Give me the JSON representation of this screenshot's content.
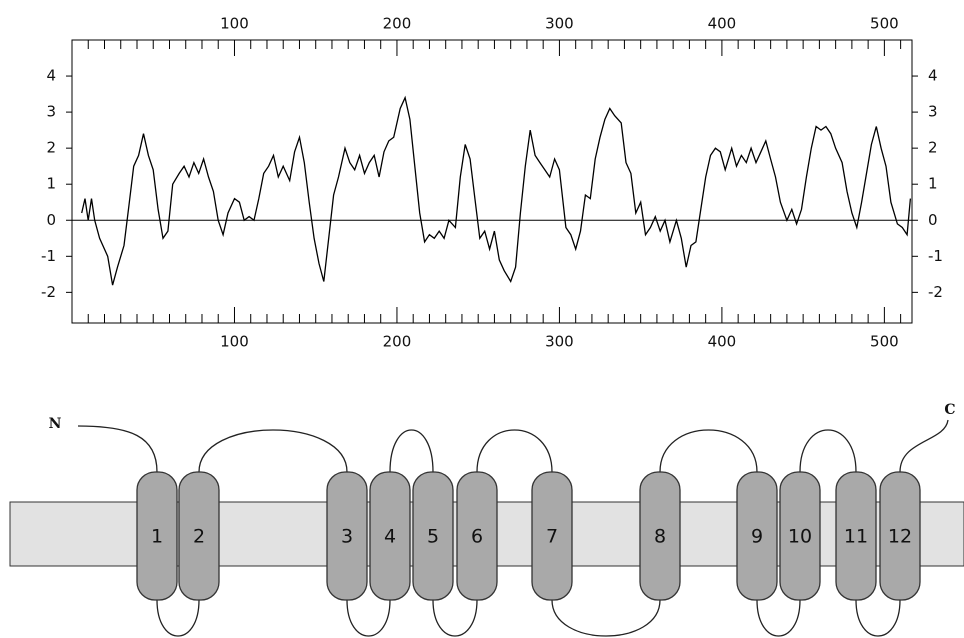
{
  "chart_data": {
    "type": "line",
    "color": "#000000",
    "x": [
      6,
      8,
      10,
      12,
      14,
      17,
      22,
      25,
      28,
      32,
      35,
      38,
      41,
      44,
      47,
      50,
      53,
      56,
      59,
      62,
      66,
      69,
      72,
      75,
      78,
      81,
      84,
      87,
      90,
      93,
      96,
      100,
      103,
      106,
      109,
      112,
      115,
      118,
      121,
      124,
      127,
      130,
      134,
      137,
      140,
      143,
      146,
      149,
      152,
      155,
      158,
      161,
      164,
      168,
      171,
      174,
      177,
      180,
      183,
      186,
      189,
      192,
      195,
      198,
      202,
      205,
      208,
      211,
      214,
      217,
      220,
      223,
      226,
      229,
      232,
      236,
      239,
      242,
      245,
      248,
      251,
      254,
      257,
      260,
      263,
      266,
      270,
      273,
      276,
      279,
      282,
      285,
      288,
      291,
      294,
      297,
      300,
      304,
      307,
      310,
      313,
      316,
      319,
      322,
      325,
      328,
      331,
      334,
      338,
      341,
      344,
      347,
      350,
      353,
      356,
      359,
      362,
      365,
      368,
      372,
      375,
      378,
      381,
      384,
      387,
      390,
      393,
      396,
      399,
      402,
      406,
      409,
      412,
      415,
      418,
      421,
      424,
      427,
      430,
      433,
      436,
      440,
      443,
      446,
      449,
      452,
      455,
      458,
      461,
      464,
      467,
      470,
      474,
      477,
      480,
      483,
      486,
      489,
      492,
      495,
      498,
      501,
      504,
      508,
      511,
      514,
      516
    ],
    "values": [
      0.2,
      0.6,
      0,
      0.6,
      0,
      -0.5,
      -1,
      -1.8,
      -1.3,
      -0.7,
      0.4,
      1.5,
      1.8,
      2.4,
      1.8,
      1.4,
      0.3,
      -0.5,
      -0.3,
      1,
      1.3,
      1.5,
      1.2,
      1.6,
      1.3,
      1.7,
      1.2,
      0.8,
      0,
      -0.4,
      0.2,
      0.6,
      0.5,
      0,
      0.1,
      0,
      0.6,
      1.3,
      1.5,
      1.8,
      1.2,
      1.5,
      1.1,
      1.9,
      2.3,
      1.6,
      0.5,
      -0.5,
      -1.2,
      -1.7,
      -0.5,
      0.7,
      1.2,
      2.0,
      1.6,
      1.4,
      1.8,
      1.3,
      1.6,
      1.8,
      1.2,
      1.9,
      2.2,
      2.3,
      3.1,
      3.4,
      2.8,
      1.5,
      0.2,
      -0.6,
      -0.4,
      -0.5,
      -0.3,
      -0.5,
      0,
      -0.2,
      1.2,
      2.1,
      1.7,
      0.6,
      -0.5,
      -0.3,
      -0.8,
      -0.3,
      -1.1,
      -1.4,
      -1.7,
      -1.3,
      0.2,
      1.5,
      2.5,
      1.8,
      1.6,
      1.4,
      1.2,
      1.7,
      1.4,
      -0.2,
      -0.4,
      -0.8,
      -0.3,
      0.7,
      0.6,
      1.7,
      2.3,
      2.8,
      3.1,
      2.9,
      2.7,
      1.6,
      1.3,
      0.2,
      0.5,
      -0.4,
      -0.2,
      0.1,
      -0.3,
      0,
      -0.6,
      0,
      -0.5,
      -1.3,
      -0.7,
      -0.6,
      0.3,
      1.2,
      1.8,
      2.0,
      1.9,
      1.4,
      2.0,
      1.5,
      1.8,
      1.6,
      2.0,
      1.6,
      1.9,
      2.2,
      1.7,
      1.2,
      0.5,
      0,
      0.3,
      -0.1,
      0.3,
      1.2,
      2.0,
      2.6,
      2.5,
      2.6,
      2.4,
      2.0,
      1.6,
      0.8,
      0.2,
      -0.2,
      0.5,
      1.3,
      2.1,
      2.6,
      2.0,
      1.5,
      0.5,
      -0.1,
      -0.2,
      -0.4,
      0.6
    ],
    "xlim": [
      0,
      517
    ],
    "xticks": [
      100,
      200,
      300,
      400,
      500
    ],
    "xminorticks": [
      10,
      20,
      30,
      40,
      50,
      60,
      70,
      80,
      90,
      110,
      120,
      130,
      140,
      150,
      160,
      170,
      180,
      190,
      210,
      220,
      230,
      240,
      250,
      260,
      270,
      280,
      290,
      310,
      320,
      330,
      340,
      350,
      360,
      370,
      380,
      390,
      410,
      420,
      430,
      440,
      450,
      460,
      470,
      480,
      490,
      510
    ],
    "ylim": [
      -2.85,
      5
    ],
    "yticks": [
      -2,
      -1,
      0,
      1,
      2,
      3,
      4
    ],
    "hline": 0
  },
  "topology": {
    "n_label": "N",
    "c_label": "C",
    "helices": [
      "1",
      "2",
      "3",
      "4",
      "5",
      "6",
      "7",
      "8",
      "9",
      "10",
      "11",
      "12"
    ]
  }
}
